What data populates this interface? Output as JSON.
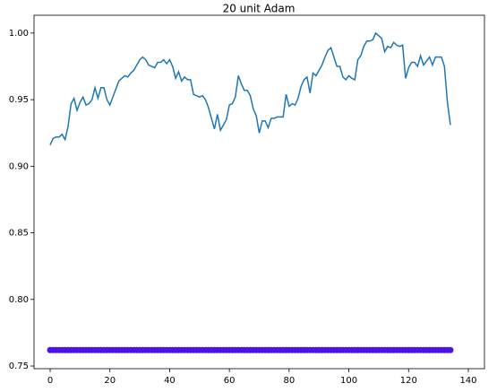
{
  "chart_data": {
    "type": "line",
    "title": "20 unit Adam",
    "x": [
      0,
      1,
      2,
      3,
      4,
      5,
      6,
      7,
      8,
      9,
      10,
      11,
      12,
      13,
      14,
      15,
      16,
      17,
      18,
      19,
      20,
      21,
      22,
      23,
      24,
      25,
      26,
      27,
      28,
      29,
      30,
      31,
      32,
      33,
      34,
      35,
      36,
      37,
      38,
      39,
      40,
      41,
      42,
      43,
      44,
      45,
      46,
      47,
      48,
      49,
      50,
      51,
      52,
      53,
      54,
      55,
      56,
      57,
      58,
      59,
      60,
      61,
      62,
      63,
      64,
      65,
      66,
      67,
      68,
      69,
      70,
      71,
      72,
      73,
      74,
      75,
      76,
      77,
      78,
      79,
      80,
      81,
      82,
      83,
      84,
      85,
      86,
      87,
      88,
      89,
      90,
      91,
      92,
      93,
      94,
      95,
      96,
      97,
      98,
      99,
      100,
      101,
      102,
      103,
      104,
      105,
      106,
      107,
      108,
      109,
      110,
      111,
      112,
      113,
      114,
      115,
      116,
      117,
      118,
      119,
      120,
      121,
      122,
      123,
      124,
      125,
      126,
      127,
      128,
      129,
      130,
      131,
      132,
      133,
      134
    ],
    "series": [
      {
        "type": "line",
        "color": "#1f77b4",
        "values": [
          0.916,
          0.921,
          0.922,
          0.922,
          0.924,
          0.92,
          0.93,
          0.947,
          0.951,
          0.942,
          0.948,
          0.952,
          0.946,
          0.947,
          0.95,
          0.959,
          0.951,
          0.959,
          0.959,
          0.95,
          0.946,
          0.952,
          0.958,
          0.964,
          0.966,
          0.968,
          0.967,
          0.97,
          0.972,
          0.976,
          0.98,
          0.982,
          0.98,
          0.976,
          0.975,
          0.974,
          0.978,
          0.978,
          0.98,
          0.977,
          0.98,
          0.975,
          0.966,
          0.971,
          0.964,
          0.967,
          0.965,
          0.965,
          0.954,
          0.953,
          0.952,
          0.953,
          0.95,
          0.944,
          0.936,
          0.928,
          0.939,
          0.927,
          0.931,
          0.935,
          0.946,
          0.947,
          0.952,
          0.968,
          0.962,
          0.957,
          0.957,
          0.953,
          0.943,
          0.938,
          0.925,
          0.934,
          0.934,
          0.929,
          0.936,
          0.936,
          0.937,
          0.937,
          0.937,
          0.954,
          0.945,
          0.947,
          0.946,
          0.951,
          0.96,
          0.965,
          0.967,
          0.955,
          0.97,
          0.968,
          0.972,
          0.976,
          0.982,
          0.987,
          0.989,
          0.982,
          0.975,
          0.975,
          0.967,
          0.965,
          0.968,
          0.966,
          0.965,
          0.98,
          0.983,
          0.99,
          0.994,
          0.994,
          0.995,
          1.0,
          0.998,
          0.996,
          0.986,
          0.99,
          0.989,
          0.993,
          0.991,
          0.99,
          0.991,
          0.966,
          0.974,
          0.978,
          0.978,
          0.975,
          0.983,
          0.976,
          0.979,
          0.982,
          0.976,
          0.982,
          0.982,
          0.982,
          0.975,
          0.948,
          0.931
        ]
      },
      {
        "type": "scatter",
        "color": "#4a14e8",
        "values": [
          0.762,
          0.762,
          0.762,
          0.762,
          0.762,
          0.762,
          0.762,
          0.762,
          0.762,
          0.762,
          0.762,
          0.762,
          0.762,
          0.762,
          0.762,
          0.762,
          0.762,
          0.762,
          0.762,
          0.762,
          0.762,
          0.762,
          0.762,
          0.762,
          0.762,
          0.762,
          0.762,
          0.762,
          0.762,
          0.762,
          0.762,
          0.762,
          0.762,
          0.762,
          0.762,
          0.762,
          0.762,
          0.762,
          0.762,
          0.762,
          0.762,
          0.762,
          0.762,
          0.762,
          0.762,
          0.762,
          0.762,
          0.762,
          0.762,
          0.762,
          0.762,
          0.762,
          0.762,
          0.762,
          0.762,
          0.762,
          0.762,
          0.762,
          0.762,
          0.762,
          0.762,
          0.762,
          0.762,
          0.762,
          0.762,
          0.762,
          0.762,
          0.762,
          0.762,
          0.762,
          0.762,
          0.762,
          0.762,
          0.762,
          0.762,
          0.762,
          0.762,
          0.762,
          0.762,
          0.762,
          0.762,
          0.762,
          0.762,
          0.762,
          0.762,
          0.762,
          0.762,
          0.762,
          0.762,
          0.762,
          0.762,
          0.762,
          0.762,
          0.762,
          0.762,
          0.762,
          0.762,
          0.762,
          0.762,
          0.762,
          0.762,
          0.762,
          0.762,
          0.762,
          0.762,
          0.762,
          0.762,
          0.762,
          0.762,
          0.762,
          0.762,
          0.762,
          0.762,
          0.762,
          0.762,
          0.762,
          0.762,
          0.762,
          0.762,
          0.762,
          0.762,
          0.762,
          0.762,
          0.762,
          0.762,
          0.762,
          0.762,
          0.762,
          0.762,
          0.762,
          0.762,
          0.762,
          0.762,
          0.762,
          0.762
        ]
      }
    ],
    "xlim": [
      -5.4,
      145.4
    ],
    "xticks": [
      0,
      20,
      40,
      60,
      80,
      100,
      120,
      140
    ],
    "ylim": [
      0.748,
      1.0134
    ],
    "yticks": [
      0.75,
      {
        "value": 0.8,
        "label": "0.80"
      },
      0.85,
      {
        "value": 0.9,
        "label": "0.90"
      },
      0.95,
      {
        "value": 1,
        "label": "1.00"
      }
    ]
  }
}
